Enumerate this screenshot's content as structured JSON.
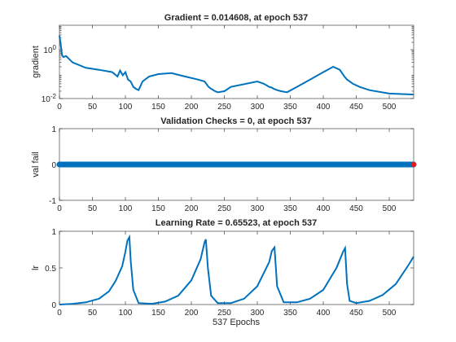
{
  "chart_data": [
    {
      "type": "line",
      "title": "Gradient = 0.014608, at epoch 537",
      "ylabel": "gradient",
      "xlim": [
        0,
        537
      ],
      "ylim_log10": [
        -2,
        1
      ],
      "yscale": "log",
      "grid": false,
      "color": "#0072BD",
      "xticks": [
        0,
        50,
        100,
        150,
        200,
        250,
        300,
        350,
        400,
        450,
        500
      ],
      "yticks": [
        {
          "base": "10",
          "exp": "0",
          "log": 0
        },
        {
          "base": "10",
          "exp": "-2",
          "log": -2
        }
      ],
      "x": [
        0,
        2,
        4,
        6,
        10,
        20,
        40,
        60,
        80,
        88,
        92,
        96,
        100,
        104,
        108,
        112,
        116,
        120,
        126,
        136,
        150,
        170,
        190,
        210,
        220,
        226,
        230,
        236,
        240,
        250,
        260,
        300,
        310,
        318,
        322,
        325,
        330,
        336,
        345,
        360,
        380,
        400,
        415,
        425,
        432,
        436,
        445,
        455,
        470,
        500,
        537
      ],
      "y": [
        3.8,
        1.6,
        0.6,
        0.5,
        0.55,
        0.3,
        0.18,
        0.15,
        0.12,
        0.08,
        0.14,
        0.09,
        0.12,
        0.06,
        0.05,
        0.03,
        0.025,
        0.022,
        0.05,
        0.08,
        0.1,
        0.11,
        0.08,
        0.06,
        0.05,
        0.03,
        0.025,
        0.02,
        0.018,
        0.02,
        0.03,
        0.05,
        0.04,
        0.03,
        0.028,
        0.025,
        0.022,
        0.02,
        0.018,
        0.03,
        0.06,
        0.12,
        0.2,
        0.15,
        0.08,
        0.06,
        0.04,
        0.03,
        0.022,
        0.016,
        0.0146
      ],
      "x_label": ""
    },
    {
      "type": "scatter",
      "title": "Validation Checks = 0, at epoch 537",
      "ylabel": "val fail",
      "xlim": [
        0,
        537
      ],
      "ylim": [
        -1,
        1
      ],
      "grid": false,
      "color": "#0072BD",
      "final_point_color": "#E41A1C",
      "xticks": [
        0,
        50,
        100,
        150,
        200,
        250,
        300,
        350,
        400,
        450,
        500
      ],
      "yticks": [
        -1,
        0,
        1
      ],
      "x_range": [
        0,
        537
      ],
      "y_value": 0
    },
    {
      "type": "line",
      "title": "Learning Rate = 0.65523, at epoch 537",
      "ylabel": "lr",
      "xlabel": "537 Epochs",
      "xlim": [
        0,
        537
      ],
      "ylim": [
        0,
        1
      ],
      "grid": false,
      "color": "#0072BD",
      "xticks": [
        0,
        50,
        100,
        150,
        200,
        250,
        300,
        350,
        400,
        450,
        500
      ],
      "yticks": [
        0,
        0.5,
        1
      ],
      "x": [
        0,
        20,
        40,
        60,
        75,
        85,
        95,
        100,
        103,
        106,
        108,
        112,
        120,
        140,
        160,
        180,
        200,
        214,
        220,
        222,
        225,
        230,
        240,
        260,
        280,
        300,
        318,
        322,
        326,
        330,
        340,
        360,
        380,
        400,
        420,
        430,
        433,
        436,
        440,
        450,
        470,
        490,
        510,
        530,
        537
      ],
      "y": [
        0.0,
        0.01,
        0.03,
        0.08,
        0.18,
        0.32,
        0.52,
        0.72,
        0.87,
        0.92,
        0.6,
        0.2,
        0.02,
        0.01,
        0.04,
        0.12,
        0.33,
        0.62,
        0.85,
        0.89,
        0.5,
        0.12,
        0.02,
        0.02,
        0.08,
        0.25,
        0.58,
        0.73,
        0.78,
        0.25,
        0.03,
        0.03,
        0.08,
        0.2,
        0.5,
        0.72,
        0.77,
        0.28,
        0.05,
        0.02,
        0.05,
        0.13,
        0.28,
        0.55,
        0.655
      ]
    }
  ]
}
